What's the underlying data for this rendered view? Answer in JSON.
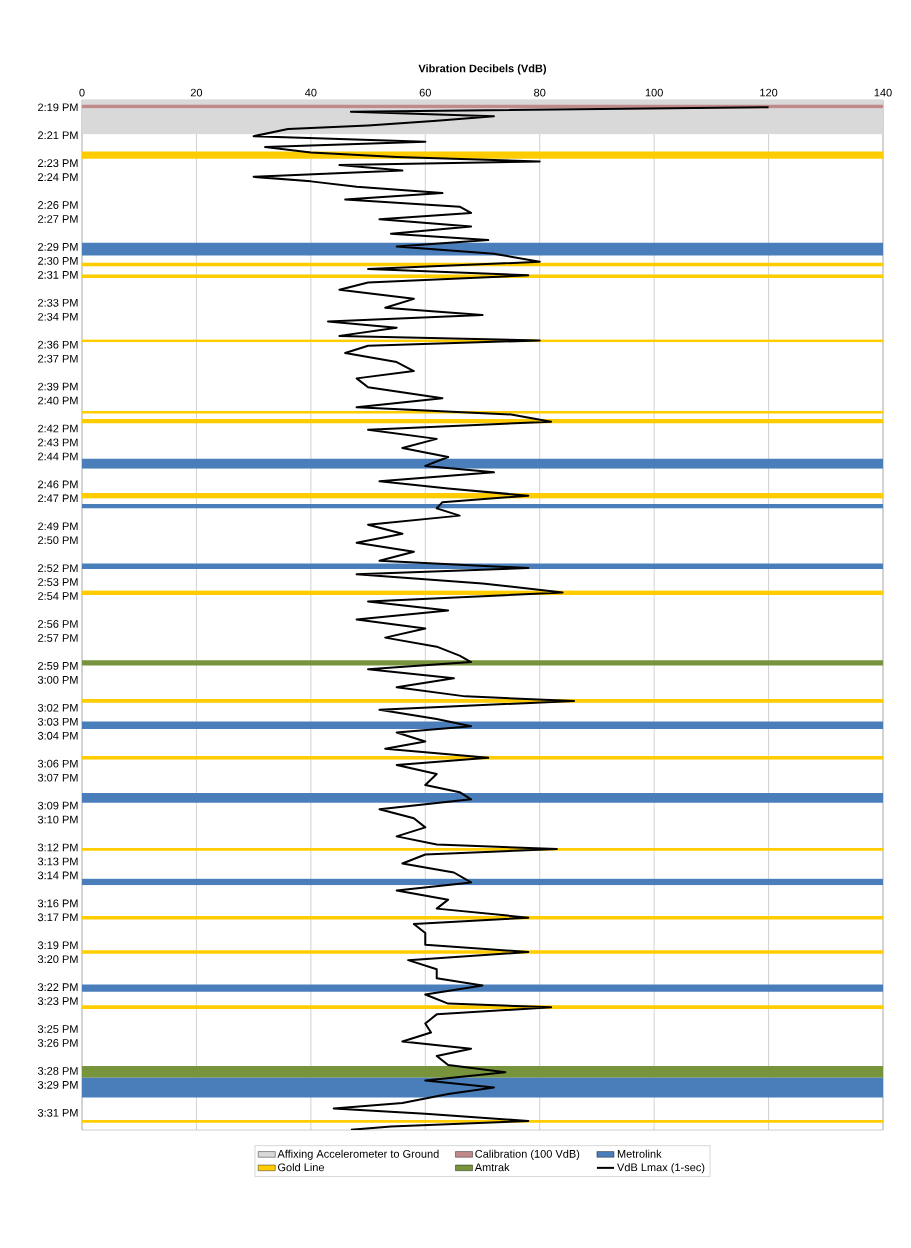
{
  "chart_data": {
    "type": "line",
    "orientation": "horizontal",
    "xlabel": "Vibration Decibels (VdB)",
    "xlim": [
      0,
      140
    ],
    "xticks": [
      0,
      20,
      40,
      60,
      80,
      100,
      120,
      140
    ],
    "grid": "x",
    "legend": "bottom",
    "ylim": [
      15.5372,
      14.308
    ],
    "yticks": [
      {
        "value": 14.3167,
        "label": "2:19 PM"
      },
      {
        "value": 14.35,
        "label": "2:21 PM"
      },
      {
        "value": 14.3833,
        "label": "2:23 PM"
      },
      {
        "value": 14.4,
        "label": "2:24 PM"
      },
      {
        "value": 14.4333,
        "label": "2:26 PM"
      },
      {
        "value": 14.45,
        "label": "2:27 PM"
      },
      {
        "value": 14.4833,
        "label": "2:29 PM"
      },
      {
        "value": 14.5,
        "label": "2:30 PM"
      },
      {
        "value": 14.5167,
        "label": "2:31 PM"
      },
      {
        "value": 14.55,
        "label": "2:33 PM"
      },
      {
        "value": 14.5667,
        "label": "2:34 PM"
      },
      {
        "value": 14.6,
        "label": "2:36 PM"
      },
      {
        "value": 14.6167,
        "label": "2:37 PM"
      },
      {
        "value": 14.65,
        "label": "2:39 PM"
      },
      {
        "value": 14.6667,
        "label": "2:40 PM"
      },
      {
        "value": 14.7,
        "label": "2:42 PM"
      },
      {
        "value": 14.7167,
        "label": "2:43 PM"
      },
      {
        "value": 14.7333,
        "label": "2:44 PM"
      },
      {
        "value": 14.7667,
        "label": "2:46 PM"
      },
      {
        "value": 14.7833,
        "label": "2:47 PM"
      },
      {
        "value": 14.8167,
        "label": "2:49 PM"
      },
      {
        "value": 14.8333,
        "label": "2:50 PM"
      },
      {
        "value": 14.8667,
        "label": "2:52 PM"
      },
      {
        "value": 14.8833,
        "label": "2:53 PM"
      },
      {
        "value": 14.9,
        "label": "2:54 PM"
      },
      {
        "value": 14.9333,
        "label": "2:56 PM"
      },
      {
        "value": 14.95,
        "label": "2:57 PM"
      },
      {
        "value": 14.9833,
        "label": "2:59 PM"
      },
      {
        "value": 15.0,
        "label": "3:00 PM"
      },
      {
        "value": 15.0333,
        "label": "3:02 PM"
      },
      {
        "value": 15.05,
        "label": "3:03 PM"
      },
      {
        "value": 15.0667,
        "label": "3:04 PM"
      },
      {
        "value": 15.1,
        "label": "3:06 PM"
      },
      {
        "value": 15.1167,
        "label": "3:07 PM"
      },
      {
        "value": 15.15,
        "label": "3:09 PM"
      },
      {
        "value": 15.1667,
        "label": "3:10 PM"
      },
      {
        "value": 15.2,
        "label": "3:12 PM"
      },
      {
        "value": 15.2167,
        "label": "3:13 PM"
      },
      {
        "value": 15.2333,
        "label": "3:14 PM"
      },
      {
        "value": 15.2667,
        "label": "3:16 PM"
      },
      {
        "value": 15.2833,
        "label": "3:17 PM"
      },
      {
        "value": 15.3167,
        "label": "3:19 PM"
      },
      {
        "value": 15.3333,
        "label": "3:20 PM"
      },
      {
        "value": 15.3667,
        "label": "3:22 PM"
      },
      {
        "value": 15.3833,
        "label": "3:23 PM"
      },
      {
        "value": 15.4167,
        "label": "3:25 PM"
      },
      {
        "value": 15.4333,
        "label": "3:26 PM"
      },
      {
        "value": 15.4667,
        "label": "3:28 PM"
      },
      {
        "value": 15.4833,
        "label": "3:29 PM"
      },
      {
        "value": 15.5167,
        "label": "3:31 PM"
      }
    ],
    "bands": [
      {
        "axis": "y",
        "from": 14.308,
        "to": 14.349,
        "label": "Affixing Accelerometer to Ground",
        "color": "#d9d9d9"
      },
      {
        "axis": "y",
        "from": 14.3135,
        "to": 14.3177,
        "label": "Calibration (100 VdB)",
        "color": "#c08a8a"
      },
      {
        "axis": "y",
        "from": 14.4784,
        "to": 14.4935,
        "label": "Metrolink",
        "color": "#4a7ebb"
      },
      {
        "axis": "y",
        "from": 14.3695,
        "to": 14.3782,
        "label": "Gold Line",
        "color": "#ffcc00"
      },
      {
        "axis": "y",
        "from": 14.9765,
        "to": 14.983,
        "label": "Amtrak",
        "color": "#77933c"
      },
      {
        "axis": "y",
        "from": 14.5022,
        "to": 14.5065,
        "color": "#ffcc00"
      },
      {
        "axis": "y",
        "from": 14.5162,
        "to": 14.5205,
        "color": "#ffcc00"
      },
      {
        "axis": "y",
        "from": 14.5938,
        "to": 14.597,
        "color": "#ffcc00"
      },
      {
        "axis": "y",
        "from": 14.679,
        "to": 14.6822,
        "color": "#ffcc00"
      },
      {
        "axis": "y",
        "from": 14.6887,
        "to": 14.694,
        "color": "#ffcc00"
      },
      {
        "axis": "y",
        "from": 14.736,
        "to": 14.748,
        "color": "#4a7ebb"
      },
      {
        "axis": "y",
        "from": 14.777,
        "to": 14.7835,
        "color": "#ffcc00"
      },
      {
        "axis": "y",
        "from": 14.79,
        "to": 14.7953,
        "color": "#4a7ebb"
      },
      {
        "axis": "y",
        "from": 14.8612,
        "to": 14.8677,
        "color": "#4a7ebb"
      },
      {
        "axis": "y",
        "from": 14.8935,
        "to": 14.8988,
        "color": "#ffcc00"
      },
      {
        "axis": "y",
        "from": 15.0228,
        "to": 15.0272,
        "color": "#ffcc00"
      },
      {
        "axis": "y",
        "from": 15.0498,
        "to": 15.0585,
        "color": "#4a7ebb"
      },
      {
        "axis": "y",
        "from": 15.0908,
        "to": 15.0952,
        "color": "#ffcc00"
      },
      {
        "axis": "y",
        "from": 15.135,
        "to": 15.1468,
        "color": "#4a7ebb"
      },
      {
        "axis": "y",
        "from": 15.2008,
        "to": 15.204,
        "color": "#ffcc00"
      },
      {
        "axis": "y",
        "from": 15.2373,
        "to": 15.245,
        "color": "#4a7ebb"
      },
      {
        "axis": "y",
        "from": 15.2817,
        "to": 15.286,
        "color": "#ffcc00"
      },
      {
        "axis": "y",
        "from": 15.3227,
        "to": 15.3268,
        "color": "#ffcc00"
      },
      {
        "axis": "y",
        "from": 15.3635,
        "to": 15.3722,
        "color": "#4a7ebb"
      },
      {
        "axis": "y",
        "from": 15.3883,
        "to": 15.3927,
        "color": "#ffcc00"
      },
      {
        "axis": "y",
        "from": 15.4607,
        "to": 15.4747,
        "color": "#77933c"
      },
      {
        "axis": "y",
        "from": 15.4747,
        "to": 15.4983,
        "color": "#4a7ebb"
      },
      {
        "axis": "y",
        "from": 15.5253,
        "to": 15.5285,
        "color": "#ffcc00"
      }
    ],
    "series": [
      {
        "name": "VdB Lmax (1-sec)",
        "color": "#000000",
        "x": [
          14.3167,
          14.3221,
          14.3275,
          14.3329,
          14.3383,
          14.3426,
          14.3512,
          14.3577,
          14.3641,
          14.3706,
          14.376,
          14.3814,
          14.3857,
          14.3922,
          14.3997,
          14.4051,
          14.4116,
          14.4191,
          14.4267,
          14.4353,
          14.4428,
          14.4504,
          14.459,
          14.4676,
          14.4752,
          14.4827,
          14.4914,
          14.5011,
          14.5097,
          14.5172,
          14.5259,
          14.5345,
          14.5453,
          14.556,
          14.5647,
          14.5722,
          14.5798,
          14.5895,
          14.5949,
          14.6013,
          14.61,
          14.6207,
          14.6315,
          14.6402,
          14.6509,
          14.6639,
          14.6747,
          14.6833,
          14.6919,
          14.7016,
          14.7124,
          14.7232,
          14.734,
          14.7447,
          14.7523,
          14.7631,
          14.7717,
          14.7803,
          14.7879,
          14.7954,
          14.804,
          14.8148,
          14.8256,
          14.8364,
          14.8472,
          14.8579,
          14.8666,
          14.8741,
          14.8849,
          14.8957,
          14.9065,
          14.9172,
          14.928,
          14.9388,
          14.9496,
          14.9604,
          14.9711,
          14.9787,
          14.9873,
          14.9981,
          15.0089,
          15.0197,
          15.0251,
          15.0358,
          15.0466,
          15.0553,
          15.0628,
          15.0736,
          15.0822,
          15.093,
          15.1016,
          15.1124,
          15.1254,
          15.134,
          15.1426,
          15.1545,
          15.1652,
          15.176,
          15.1868,
          15.1965,
          15.2019,
          15.2084,
          15.2191,
          15.2299,
          15.2418,
          15.2515,
          15.2623,
          15.273,
          15.2838,
          15.2914,
          15.3022,
          15.3162,
          15.3248,
          15.3345,
          15.3453,
          15.3561,
          15.3647,
          15.3755,
          15.3863,
          15.3906,
          15.3992,
          15.41,
          15.4208,
          15.4316,
          15.4402,
          15.4488,
          15.4596,
          15.4682,
          15.478,
          15.4866,
          15.4942,
          15.5049,
          15.5114,
          15.5178,
          15.5264,
          15.5329,
          15.537
        ],
        "values": [
          120,
          47,
          72,
          62,
          50,
          36,
          30,
          60,
          32,
          40,
          55,
          80,
          45,
          56,
          30,
          40,
          48,
          63,
          46,
          66,
          68,
          52,
          68,
          54,
          71,
          55,
          72,
          80,
          50,
          78,
          50,
          45,
          58,
          53,
          70,
          43,
          55,
          45,
          80,
          50,
          46,
          55,
          58,
          48,
          50,
          63,
          48,
          75,
          82,
          50,
          62,
          56,
          64,
          60,
          72,
          52,
          64,
          78,
          63,
          62,
          66,
          50,
          56,
          48,
          58,
          52,
          78,
          48,
          70,
          84,
          50,
          64,
          48,
          60,
          53,
          62,
          66,
          68,
          50,
          65,
          55,
          67,
          86,
          52,
          62,
          68,
          55,
          60,
          53,
          71,
          55,
          62,
          60,
          66,
          68,
          52,
          58,
          60,
          55,
          62,
          83,
          60,
          56,
          65,
          68,
          55,
          64,
          62,
          78,
          58,
          60,
          60,
          78,
          57,
          62,
          62,
          70,
          60,
          64,
          82,
          62,
          60,
          61,
          56,
          68,
          62,
          64,
          74,
          60,
          72,
          64,
          56,
          44,
          60,
          78,
          54,
          47
        ]
      }
    ]
  }
}
